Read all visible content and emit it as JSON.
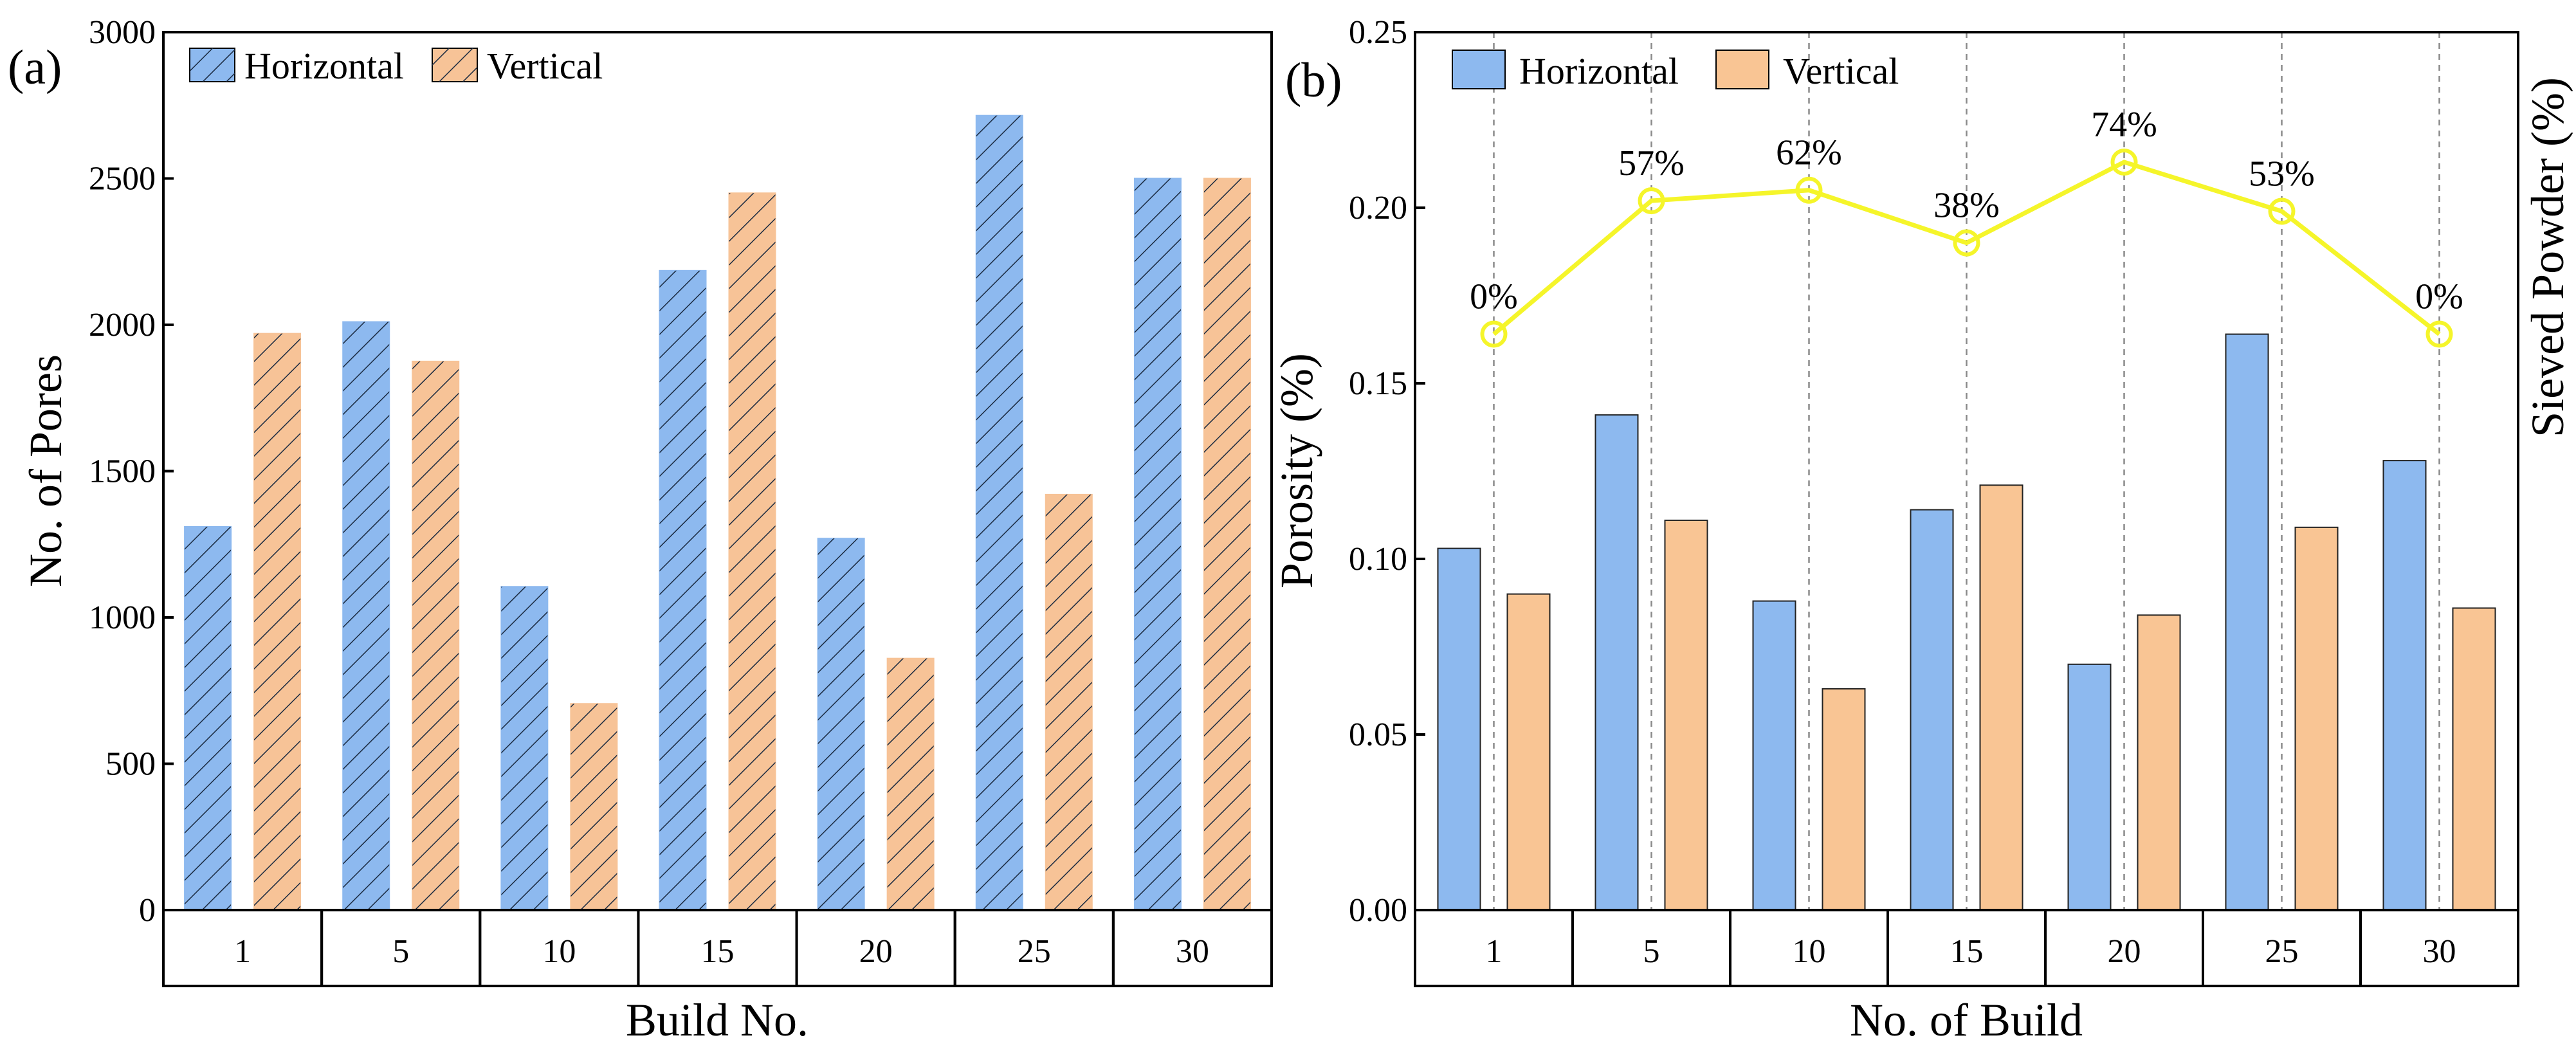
{
  "chart_data": [
    {
      "type": "bar",
      "panel_label": "(a)",
      "categories": [
        "1",
        "5",
        "10",
        "15",
        "20",
        "25",
        "30"
      ],
      "series": [
        {
          "name": "Horizontal",
          "values": [
            1310,
            2010,
            1105,
            2185,
            1270,
            2715,
            2500
          ]
        },
        {
          "name": "Vertical",
          "values": [
            1970,
            1875,
            705,
            2450,
            860,
            1420,
            2500
          ]
        }
      ],
      "xlabel": "Build No.",
      "ylabel": "No. of Pores",
      "ylim": [
        0,
        3000
      ],
      "yticks": [
        "0",
        "500",
        "1000",
        "1500",
        "2000",
        "2500",
        "3000"
      ],
      "bar_fill": "hatched",
      "legend_position": "top-left",
      "colors": {
        "Horizontal": "#8db9ef",
        "Vertical": "#f7c397",
        "hatch": "#1a2a40"
      }
    },
    {
      "type": "bar",
      "panel_label": "(b)",
      "categories": [
        "1",
        "5",
        "10",
        "15",
        "20",
        "25",
        "30"
      ],
      "series": [
        {
          "name": "Horizontal",
          "values": [
            0.103,
            0.141,
            0.088,
            0.114,
            0.07,
            0.164,
            0.128
          ]
        },
        {
          "name": "Vertical",
          "values": [
            0.09,
            0.111,
            0.063,
            0.121,
            0.084,
            0.109,
            0.086
          ]
        }
      ],
      "overlay_line": {
        "axis": "right",
        "values": [
          0,
          57,
          62,
          38,
          74,
          53,
          0
        ],
        "labels": [
          "0%",
          "57%",
          "62%",
          "38%",
          "74%",
          "53%",
          "0%"
        ],
        "display_positions": [
          0.164,
          0.202,
          0.205,
          0.19,
          0.213,
          0.199,
          0.164
        ],
        "color": "#f5f52a"
      },
      "xlabel": "No. of Build",
      "ylabel": "Porosity (%)",
      "ylabel_right": "Sieved Powder (%)",
      "ylim": [
        0,
        0.25
      ],
      "yticks": [
        "0.00",
        "0.05",
        "0.10",
        "0.15",
        "0.20",
        "0.25"
      ],
      "grid_x": "dashed vertical lines",
      "legend_position": "top-left",
      "colors": {
        "Horizontal": "#8db9ef",
        "Vertical": "#f9c594"
      }
    }
  ]
}
